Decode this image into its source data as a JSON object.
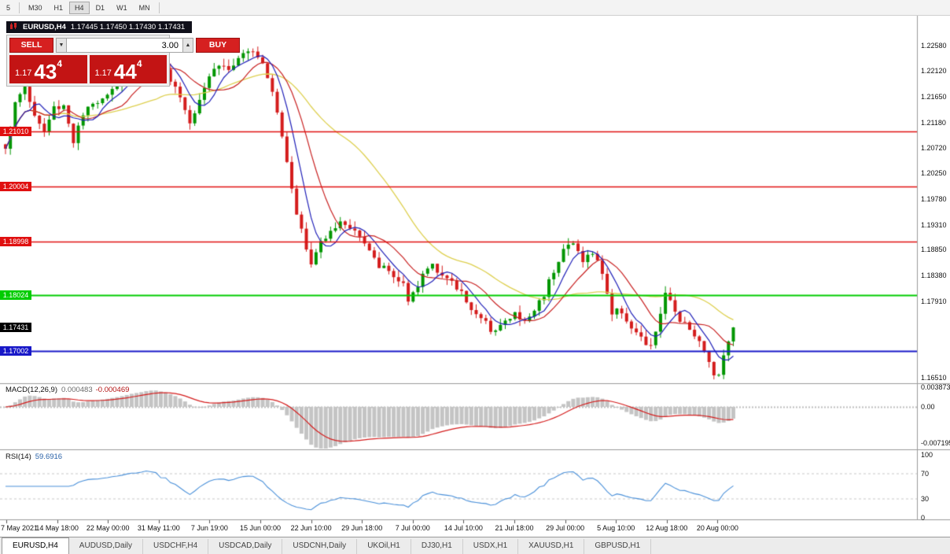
{
  "toolbar": {
    "timeframes": [
      {
        "label": "5",
        "active": false
      },
      {
        "label": "M30",
        "active": false
      },
      {
        "label": "H1",
        "active": false
      },
      {
        "label": "H4",
        "active": true
      },
      {
        "label": "D1",
        "active": false
      },
      {
        "label": "W1",
        "active": false
      },
      {
        "label": "MN",
        "active": false
      }
    ]
  },
  "chart_title": {
    "symbol": "EURUSD,H4",
    "ohlc": "1.17445 1.17450 1.17430 1.17431"
  },
  "trade": {
    "sell_label": "SELL",
    "buy_label": "BUY",
    "volume": "3.00",
    "sell_price": {
      "prefix": "1.17",
      "big": "43",
      "sup": "4"
    },
    "buy_price": {
      "prefix": "1.17",
      "big": "44",
      "sup": "4"
    }
  },
  "icons": {
    "volume_up": "▲",
    "volume_down": "▼"
  },
  "chart_data": {
    "type": "candlestick",
    "symbol": "EURUSD",
    "timeframe": "H4",
    "price_axis_labels": [
      "1.22580",
      "1.22120",
      "1.21650",
      "1.21180",
      "1.20720",
      "1.20250",
      "1.19780",
      "1.19310",
      "1.18850",
      "1.18380",
      "1.17910",
      "1.16510"
    ],
    "current_price": "1.17431",
    "levels": [
      {
        "price": 1.2101,
        "label": "1.21010",
        "color": "#e01010"
      },
      {
        "price": 1.20004,
        "label": "1.20004",
        "color": "#e01010"
      },
      {
        "price": 1.18998,
        "label": "1.18998",
        "color": "#e01010"
      },
      {
        "price": 1.18024,
        "label": "1.18024",
        "color": "#00cc00"
      },
      {
        "price": 1.17002,
        "label": "1.17002",
        "color": "#1818c8"
      }
    ],
    "time_labels": [
      "7 May 2021",
      "14 May 18:00",
      "22 May 00:00",
      "31 May 11:00",
      "7 Jun 19:00",
      "15 Jun 00:00",
      "22 Jun 10:00",
      "29 Jun 18:00",
      "7 Jul 00:00",
      "14 Jul 10:00",
      "21 Jul 18:00",
      "29 Jul 00:00",
      "5 Aug 10:00",
      "12 Aug 18:00",
      "20 Aug 00:00"
    ],
    "bars": 151,
    "y_range": {
      "top": 1.2306,
      "bottom": 1.1641
    },
    "price_path_anchors": [
      [
        0,
        1.2075
      ],
      [
        2,
        1.215
      ],
      [
        4,
        1.2185
      ],
      [
        6,
        1.213
      ],
      [
        8,
        1.21
      ],
      [
        10,
        1.2145
      ],
      [
        12,
        1.215
      ],
      [
        14,
        1.2085
      ],
      [
        16,
        1.213
      ],
      [
        19,
        1.216
      ],
      [
        22,
        1.218
      ],
      [
        25,
        1.2205
      ],
      [
        28,
        1.2235
      ],
      [
        30,
        1.2245
      ],
      [
        32,
        1.222
      ],
      [
        34,
        1.22
      ],
      [
        36,
        1.2165
      ],
      [
        38,
        1.212
      ],
      [
        40,
        1.2165
      ],
      [
        42,
        1.2205
      ],
      [
        44,
        1.2225
      ],
      [
        46,
        1.2215
      ],
      [
        48,
        1.223
      ],
      [
        50,
        1.2245
      ],
      [
        51,
        1.2255
      ],
      [
        53,
        1.223
      ],
      [
        55,
        1.218
      ],
      [
        56,
        1.214
      ],
      [
        58,
        1.205
      ],
      [
        60,
        1.1955
      ],
      [
        62,
        1.1885
      ],
      [
        63,
        1.1858
      ],
      [
        65,
        1.19
      ],
      [
        67,
        1.1925
      ],
      [
        70,
        1.1935
      ],
      [
        72,
        1.192
      ],
      [
        74,
        1.1895
      ],
      [
        76,
        1.1865
      ],
      [
        78,
        1.185
      ],
      [
        80,
        1.1838
      ],
      [
        82,
        1.182
      ],
      [
        83,
        1.1785
      ],
      [
        85,
        1.1815
      ],
      [
        86,
        1.184
      ],
      [
        88,
        1.1862
      ],
      [
        90,
        1.184
      ],
      [
        92,
        1.1822
      ],
      [
        94,
        1.1808
      ],
      [
        96,
        1.178
      ],
      [
        98,
        1.1755
      ],
      [
        100,
        1.1742
      ],
      [
        102,
        1.1748
      ],
      [
        104,
        1.1758
      ],
      [
        105,
        1.1768
      ],
      [
        107,
        1.1752
      ],
      [
        109,
        1.1775
      ],
      [
        111,
        1.1805
      ],
      [
        113,
        1.185
      ],
      [
        115,
        1.1888
      ],
      [
        117,
        1.1895
      ],
      [
        119,
        1.1868
      ],
      [
        121,
        1.1878
      ],
      [
        123,
        1.1845
      ],
      [
        125,
        1.1768
      ],
      [
        127,
        1.1775
      ],
      [
        129,
        1.1742
      ],
      [
        131,
        1.172
      ],
      [
        133,
        1.1705
      ],
      [
        135,
        1.177
      ],
      [
        136,
        1.18
      ],
      [
        137,
        1.1788
      ],
      [
        139,
        1.176
      ],
      [
        141,
        1.1745
      ],
      [
        143,
        1.1715
      ],
      [
        145,
        1.168
      ],
      [
        146,
        1.1662
      ],
      [
        147,
        1.1655
      ],
      [
        148,
        1.1695
      ],
      [
        149,
        1.1725
      ],
      [
        150,
        1.17431
      ]
    ],
    "macd": {
      "title": "MACD(12,26,9)",
      "value_main": "0.000483",
      "value_signal": "-0.000469",
      "fast": 12,
      "slow": 26,
      "signal_period": 9,
      "axis_labels": [
        {
          "text": "0.003873",
          "value": 0.003873
        },
        {
          "text": "0.00",
          "value": 0
        },
        {
          "text": "-0.007195",
          "value": -0.007195
        }
      ]
    },
    "rsi": {
      "title": "RSI(14)",
      "value": "59.6916",
      "period": 14,
      "guide_levels": [
        70,
        30
      ],
      "axis_labels": [
        {
          "text": "100",
          "value": 100
        },
        {
          "text": "70",
          "value": 70
        },
        {
          "text": "30",
          "value": 30
        },
        {
          "text": "0",
          "value": 0
        }
      ]
    },
    "ma_periods": {
      "fast": 6,
      "mid": 12,
      "slow": 32
    },
    "style": {
      "bull": "#009600",
      "bear": "#d41c1c",
      "ma_fast": "#2020b8",
      "ma_mid": "#c82020",
      "ma_slow": "#ddcf4e",
      "macd_hist": "#c4c4c4",
      "macd_signal": "#d41c1c",
      "rsi_line": "#4a90d9",
      "current_badge_bg": "#000000"
    }
  },
  "tabs": [
    {
      "label": "EURUSD,H4",
      "active": true
    },
    {
      "label": "AUDUSD,Daily",
      "active": false
    },
    {
      "label": "USDCHF,H4",
      "active": false
    },
    {
      "label": "USDCAD,Daily",
      "active": false
    },
    {
      "label": "USDCNH,Daily",
      "active": false
    },
    {
      "label": "UKOil,H1",
      "active": false
    },
    {
      "label": "DJ30,H1",
      "active": false
    },
    {
      "label": "USDX,H1",
      "active": false
    },
    {
      "label": "XAUUSD,H1",
      "active": false
    },
    {
      "label": "GBPUSD,H1",
      "active": false
    }
  ]
}
